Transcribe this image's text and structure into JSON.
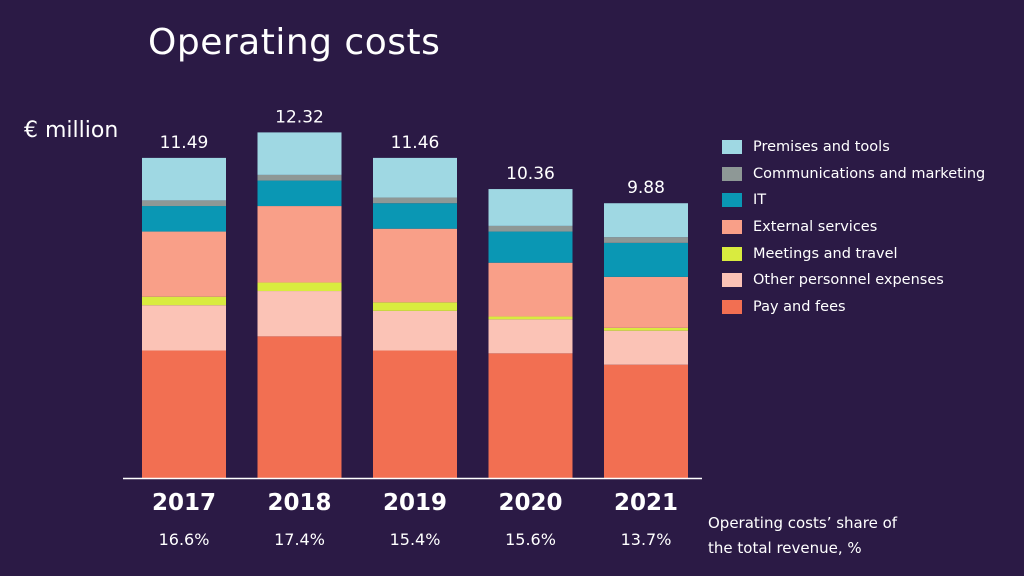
{
  "title": "Operating costs",
  "unit_label": "€ million",
  "share_note": [
    "Operating costs’ share of",
    "the total revenue, %"
  ],
  "chart_data": {
    "type": "bar",
    "stacked": true,
    "categories": [
      "2017",
      "2018",
      "2019",
      "2020",
      "2021"
    ],
    "totals": [
      "11.49",
      "12.32",
      "11.46",
      "10.36",
      "9.88"
    ],
    "shares": [
      "16.6%",
      "17.4%",
      "15.4%",
      "15.6%",
      "13.7%"
    ],
    "ylim": [
      0,
      12.32
    ],
    "series": [
      {
        "name": "Pay and fees",
        "color": "#f26f52",
        "values": [
          4.5,
          5.0,
          4.5,
          4.4,
          4.0
        ]
      },
      {
        "name": "Other personnel expenses",
        "color": "#fbc3b6",
        "values": [
          1.6,
          1.6,
          1.4,
          1.2,
          1.2
        ]
      },
      {
        "name": "Meetings and travel",
        "color": "#d9eb3f",
        "values": [
          0.3,
          0.3,
          0.3,
          0.1,
          0.1
        ]
      },
      {
        "name": "External services",
        "color": "#f99f88",
        "values": [
          2.3,
          2.7,
          2.6,
          1.9,
          1.8
        ]
      },
      {
        "name": "IT",
        "color": "#0a97b4",
        "values": [
          0.9,
          0.9,
          0.9,
          1.1,
          1.2
        ]
      },
      {
        "name": "Communications and marketing",
        "color": "#8e9896",
        "values": [
          0.2,
          0.2,
          0.2,
          0.2,
          0.2
        ]
      },
      {
        "name": "Premises and tools",
        "color": "#9fd8e3",
        "values": [
          1.5,
          1.5,
          1.4,
          1.3,
          1.2
        ]
      }
    ]
  }
}
